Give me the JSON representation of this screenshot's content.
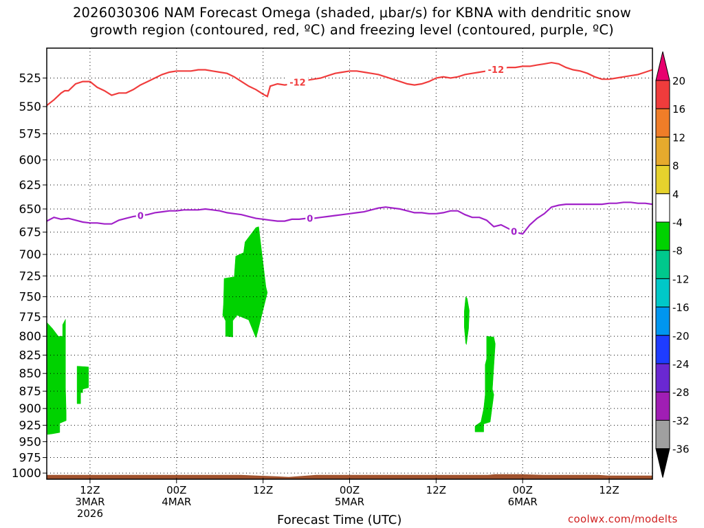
{
  "title_line1": "2026030306 NAM Forecast Omega (shaded, μbar/s) for KBNA with dendritic snow",
  "title_line2": "growth region (contoured, red, ºC) and freezing level (contoured, purple, ºC)",
  "xaxis_title": "Forecast Time (UTC)",
  "credit": "coolwx.com/modelts",
  "chart_data": {
    "type": "time-height",
    "title": "2026030306 NAM Forecast Omega (shaded, μbar/s) for KBNA with dendritic snow growth region (contoured, red, ºC) and freezing level (contoured, purple, ºC)",
    "xlabel": "Forecast Time (UTC)",
    "ylabel": "",
    "x_unit": "hours from 2026-03-03 06Z",
    "xlim": [
      0,
      84
    ],
    "ylim_pressure_hPa": [
      1010,
      500
    ],
    "y_ticks": [
      525,
      550,
      575,
      600,
      625,
      650,
      675,
      700,
      725,
      750,
      775,
      800,
      825,
      850,
      875,
      900,
      925,
      950,
      975,
      1000
    ],
    "x_ticks": [
      {
        "x": 6,
        "label": [
          "12Z",
          "3MAR",
          "2026"
        ]
      },
      {
        "x": 18,
        "label": [
          "00Z",
          "4MAR"
        ]
      },
      {
        "x": 30,
        "label": [
          "12Z"
        ]
      },
      {
        "x": 42,
        "label": [
          "00Z",
          "5MAR"
        ]
      },
      {
        "x": 54,
        "label": [
          "12Z"
        ]
      },
      {
        "x": 66,
        "label": [
          "00Z",
          "6MAR"
        ]
      },
      {
        "x": 78,
        "label": [
          "12Z"
        ]
      }
    ],
    "grid": "dotted",
    "series": [
      {
        "name": "dendritic snow growth (-12 ºC)",
        "color": "#f03c3c",
        "labels": [
          {
            "text": "-12",
            "x": 34.8
          },
          {
            "text": "-12",
            "x": 62.3
          }
        ],
        "x": [
          0,
          1,
          2,
          2.5,
          3,
          4,
          5,
          6,
          7,
          8,
          9,
          10,
          11,
          12,
          13,
          14,
          15,
          16,
          17,
          18,
          19,
          20,
          21,
          22,
          23,
          24,
          25,
          26,
          27,
          28,
          29,
          30,
          30.6,
          31,
          32,
          33,
          34,
          35,
          36,
          37,
          38,
          39,
          40,
          41,
          42,
          43,
          44,
          45,
          46,
          47,
          48,
          49,
          50,
          51,
          52,
          53,
          54,
          55,
          56,
          57,
          58,
          59,
          60,
          61,
          62,
          63,
          64,
          65,
          66,
          67,
          68,
          69,
          70,
          71,
          72,
          73,
          74,
          75,
          76,
          77,
          78,
          79,
          80,
          81,
          82,
          83,
          84
        ],
        "y": [
          549,
          544,
          538,
          536,
          536,
          530,
          528,
          528,
          533,
          536,
          540,
          538,
          538,
          535,
          531,
          528,
          525,
          522,
          520,
          519,
          519,
          519,
          518,
          518,
          519,
          520,
          521,
          524,
          528,
          532,
          535,
          539,
          541,
          532,
          530,
          531,
          530,
          528,
          527,
          526,
          525,
          523,
          521,
          520,
          519,
          519,
          520,
          521,
          522,
          524,
          526,
          528,
          530,
          531,
          530,
          528,
          525,
          524,
          525,
          524,
          522,
          521,
          520,
          519,
          518,
          517,
          516,
          516,
          515,
          515,
          514,
          513,
          512,
          513,
          516,
          518,
          519,
          521,
          524,
          526,
          526,
          525,
          524,
          523,
          522,
          520,
          518
        ]
      },
      {
        "name": "freezing level (0 ºC)",
        "color": "#a020c8",
        "labels": [
          {
            "text": "0",
            "x": 13
          },
          {
            "text": "0",
            "x": 36.5
          },
          {
            "text": "0",
            "x": 64.8
          }
        ],
        "x": [
          0,
          1,
          2,
          3,
          4,
          5,
          6,
          7,
          8,
          9,
          10,
          11,
          12,
          13,
          14,
          15,
          16,
          17,
          18,
          19,
          20,
          21,
          22,
          23,
          24,
          25,
          26,
          27,
          28,
          29,
          30,
          31,
          32,
          33,
          34,
          35,
          36,
          37,
          38,
          39,
          40,
          41,
          42,
          43,
          44,
          45,
          46,
          47,
          48,
          49,
          50,
          51,
          52,
          53,
          54,
          55,
          56,
          57,
          58,
          59,
          60,
          61,
          62,
          63,
          64,
          65,
          66,
          67,
          68,
          69,
          70,
          71,
          72,
          73,
          74,
          75,
          76,
          77,
          78,
          79,
          80,
          81,
          82,
          83,
          84
        ],
        "y": [
          663,
          659,
          661,
          660,
          662,
          664,
          665,
          665,
          666,
          666,
          662,
          660,
          658,
          657,
          656,
          654,
          653,
          652,
          652,
          651,
          651,
          651,
          650,
          651,
          652,
          654,
          655,
          656,
          658,
          660,
          661,
          662,
          663,
          663,
          661,
          661,
          660,
          660,
          659,
          658,
          657,
          656,
          655,
          654,
          653,
          651,
          649,
          648,
          649,
          650,
          652,
          654,
          654,
          655,
          655,
          654,
          652,
          652,
          656,
          659,
          659,
          662,
          669,
          667,
          671,
          675,
          677,
          667,
          660,
          655,
          648,
          646,
          645,
          645,
          645,
          645,
          645,
          645,
          644,
          644,
          643,
          643,
          644,
          644,
          645
        ]
      }
    ],
    "omega_regions": [
      {
        "value_range": [
          -8,
          -4
        ],
        "color": "#00d200",
        "outline": [
          [
            0,
            782
          ],
          [
            0.8,
            790
          ],
          [
            1.6,
            800
          ],
          [
            2.2,
            800
          ],
          [
            2.2,
            785
          ],
          [
            2.6,
            778
          ],
          [
            2.6,
            870
          ],
          [
            2.7,
            908
          ],
          [
            2.7,
            918
          ],
          [
            1.8,
            922
          ],
          [
            1.8,
            936
          ],
          [
            0.8,
            938
          ],
          [
            0.1,
            939
          ]
        ]
      },
      {
        "value_range": [
          -8,
          -4
        ],
        "color": "#00d200",
        "outline": [
          [
            4.2,
            840
          ],
          [
            5.8,
            841
          ],
          [
            5.8,
            870
          ],
          [
            5.0,
            872
          ],
          [
            5.0,
            877
          ],
          [
            4.7,
            877
          ],
          [
            4.7,
            893
          ],
          [
            4.2,
            893
          ]
        ]
      },
      {
        "value_range": [
          -8,
          -4
        ],
        "color": "#00d200",
        "outline": [
          [
            24.6,
            728
          ],
          [
            26.0,
            726
          ],
          [
            26.2,
            702
          ],
          [
            27.3,
            698
          ],
          [
            27.5,
            686
          ],
          [
            29.0,
            670
          ],
          [
            29.4,
            669
          ],
          [
            30.4,
            738
          ],
          [
            30.6,
            745
          ],
          [
            29.2,
            796
          ],
          [
            29.0,
            802
          ],
          [
            28.0,
            779
          ],
          [
            26.4,
            773
          ],
          [
            25.8,
            780
          ],
          [
            25.8,
            801
          ],
          [
            24.8,
            800
          ],
          [
            24.8,
            780
          ],
          [
            24.4,
            773
          ],
          [
            24.5,
            760
          ]
        ]
      },
      {
        "value_range": [
          -8,
          -4
        ],
        "color": "#00d200",
        "outline": [
          [
            58.1,
            750
          ],
          [
            58.3,
            752
          ],
          [
            58.6,
            767
          ],
          [
            58.5,
            790
          ],
          [
            58.2,
            811
          ],
          [
            58.1,
            809
          ],
          [
            57.9,
            788
          ],
          [
            57.9,
            768
          ]
        ]
      },
      {
        "value_range": [
          -8,
          -4
        ],
        "color": "#00d200",
        "outline": [
          [
            61.0,
            800
          ],
          [
            62.0,
            801
          ],
          [
            62.2,
            810
          ],
          [
            61.8,
            872
          ],
          [
            62.0,
            880
          ],
          [
            61.5,
            920
          ],
          [
            60.6,
            923
          ],
          [
            60.6,
            935
          ],
          [
            59.4,
            935
          ],
          [
            59.4,
            926
          ],
          [
            60.2,
            920
          ],
          [
            60.6,
            900
          ],
          [
            60.8,
            880
          ],
          [
            60.8,
            838
          ],
          [
            61.0,
            830
          ]
        ]
      }
    ],
    "surface_fill": {
      "color": "#a0522d",
      "approx_pressure_hPa": 1003
    },
    "colorbar": {
      "levels": [
        "20",
        "16",
        "12",
        "8",
        "4",
        "-4",
        "-8",
        "-12",
        "-16",
        "-20",
        "-24",
        "-28",
        "-32",
        "-36"
      ],
      "colors": [
        "#e8006e",
        "#f03c3c",
        "#f07d28",
        "#e6aa2d",
        "#e6d22d",
        "#ffffff",
        "#00d200",
        "#00c88c",
        "#00c8c8",
        "#0096f0",
        "#1e3cff",
        "#6a28d2",
        "#a01eb4",
        "#a0a0a0",
        "#000000"
      ]
    }
  }
}
